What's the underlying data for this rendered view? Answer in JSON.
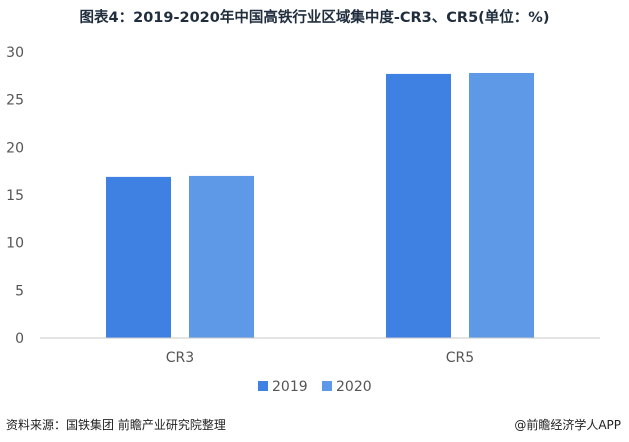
{
  "header": {
    "title": "图表4：2019-2020年中国高铁行业区域集中度-CR3、CR5(单位：%)"
  },
  "footer": {
    "source": "资料来源：国铁集团 前瞻产业研究院整理",
    "brand": "@前瞻经济学人APP"
  },
  "colors": {
    "series_2019": "#3f80e3",
    "series_2020": "#5e99e8",
    "axis": "#c8c8c8"
  },
  "chart_data": {
    "type": "bar",
    "title": "",
    "categories": [
      "CR3",
      "CR5"
    ],
    "series": [
      {
        "name": "2019",
        "values": [
          16.9,
          27.7
        ]
      },
      {
        "name": "2020",
        "values": [
          17.0,
          27.8
        ]
      }
    ],
    "ylim": [
      0,
      30
    ],
    "yticks": [
      0,
      5,
      10,
      15,
      20,
      25,
      30
    ],
    "grid": false,
    "legend_position": "bottom"
  }
}
